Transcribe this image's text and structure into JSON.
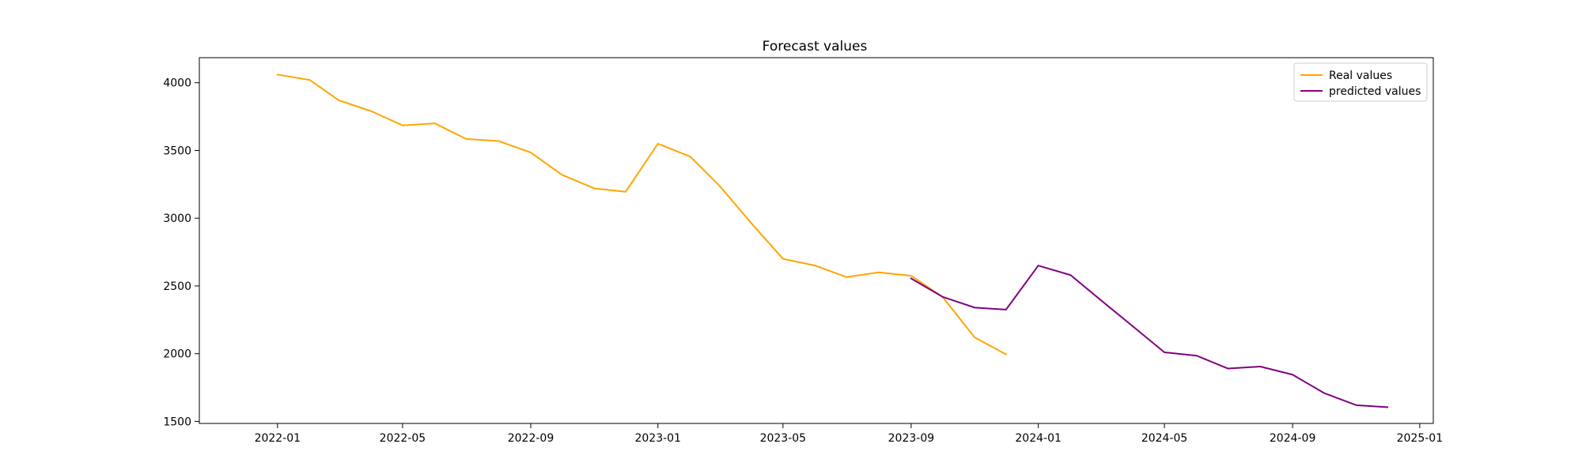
{
  "chart_data": {
    "type": "line",
    "title": "Forecast values",
    "xlabel": "",
    "ylabel": "",
    "xlim": [
      "2021-10-18",
      "2025-01-14"
    ],
    "ylim": [
      1485,
      4185
    ],
    "x_ticks": [
      "2022-01",
      "2022-05",
      "2022-09",
      "2023-01",
      "2023-05",
      "2023-09",
      "2024-01",
      "2024-05",
      "2024-09",
      "2025-01"
    ],
    "y_ticks": [
      1500,
      2000,
      2500,
      3000,
      3500,
      4000
    ],
    "grid": false,
    "legend_position": "top-right",
    "series": [
      {
        "name": "Real values",
        "color": "#FFA500",
        "x": [
          "2022-01-01",
          "2022-02-01",
          "2022-03-01",
          "2022-04-01",
          "2022-05-01",
          "2022-06-01",
          "2022-07-01",
          "2022-08-01",
          "2022-09-01",
          "2022-10-01",
          "2022-11-01",
          "2022-12-01",
          "2023-01-01",
          "2023-02-01",
          "2023-03-01",
          "2023-04-01",
          "2023-05-01",
          "2023-06-01",
          "2023-07-01",
          "2023-08-01",
          "2023-09-01",
          "2023-10-01",
          "2023-11-01",
          "2023-12-01"
        ],
        "values": [
          4060,
          4020,
          3870,
          3790,
          3685,
          3700,
          3585,
          3570,
          3485,
          3320,
          3220,
          3195,
          3550,
          3455,
          3240,
          2960,
          2700,
          2650,
          2565,
          2600,
          2575,
          2420,
          2120,
          1995
        ]
      },
      {
        "name": "predicted values",
        "color": "#800080",
        "x": [
          "2023-09-01",
          "2023-10-01",
          "2023-11-01",
          "2023-12-01",
          "2024-01-01",
          "2024-02-01",
          "2024-03-01",
          "2024-04-01",
          "2024-05-01",
          "2024-06-01",
          "2024-07-01",
          "2024-08-01",
          "2024-09-01",
          "2024-10-01",
          "2024-11-01",
          "2024-12-01"
        ],
        "values": [
          2555,
          2420,
          2340,
          2325,
          2650,
          2580,
          2395,
          2200,
          2010,
          1985,
          1890,
          1905,
          1845,
          1710,
          1620,
          1605
        ]
      }
    ]
  }
}
